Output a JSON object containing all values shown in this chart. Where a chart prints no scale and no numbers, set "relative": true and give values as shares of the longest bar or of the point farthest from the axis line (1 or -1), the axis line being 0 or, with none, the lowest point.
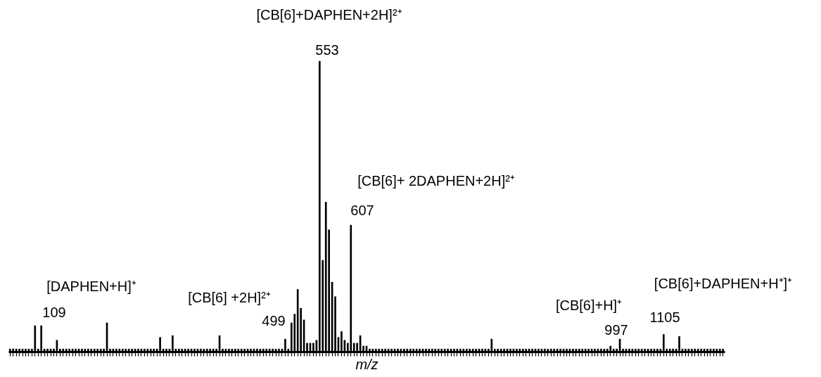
{
  "chart_data": {
    "type": "bar",
    "relative": true,
    "xlabel": "m/z",
    "color": "#000000",
    "categories": [
      null,
      null,
      null,
      null,
      null,
      null,
      null,
      null,
      null,
      null,
      null,
      null,
      null,
      null,
      null,
      null,
      null,
      null,
      null,
      null,
      null,
      null,
      null,
      null,
      null,
      null,
      null,
      null,
      null,
      null,
      null,
      null,
      null,
      null,
      null,
      null,
      null,
      null,
      null,
      null,
      null,
      null,
      null,
      null,
      null,
      null,
      null,
      null,
      null,
      null,
      null,
      null,
      null,
      null,
      null,
      null,
      null,
      null,
      null,
      null,
      null,
      null,
      null,
      null,
      null,
      null,
      null,
      null,
      null,
      null,
      null,
      null,
      null,
      null,
      null,
      null,
      null,
      null,
      null,
      null,
      null,
      null,
      null,
      null,
      null,
      null,
      null,
      null,
      null,
      null,
      null,
      null,
      null,
      null,
      null,
      null,
      null,
      null,
      null,
      null,
      null,
      null,
      null,
      null,
      null,
      null,
      null,
      null,
      null,
      null,
      null,
      null,
      null,
      null,
      null,
      null,
      null,
      null,
      null,
      null,
      null,
      null,
      null,
      null,
      null,
      null,
      null,
      null,
      null,
      null,
      null,
      null,
      null,
      null,
      null,
      null,
      null,
      null,
      null,
      null,
      null,
      null,
      null,
      null,
      null,
      null,
      null,
      null,
      null,
      null,
      null,
      null,
      null,
      null,
      null,
      null,
      null,
      null,
      null,
      null,
      null,
      null,
      null,
      null,
      null,
      null,
      null,
      null,
      null,
      null,
      null,
      null,
      null,
      null,
      null,
      null,
      null,
      null,
      null,
      null,
      null,
      null,
      null,
      null,
      null,
      null,
      null,
      null,
      null,
      null,
      null,
      null,
      null,
      null,
      null,
      null,
      null,
      null,
      null,
      null,
      null,
      null,
      null,
      null,
      null,
      null,
      null,
      null,
      null,
      null,
      null,
      null,
      null,
      null,
      null,
      null,
      null,
      null,
      null,
      null,
      null,
      null,
      null,
      null,
      null,
      null,
      null,
      null,
      null
    ],
    "values": [
      0.01,
      0.01,
      0.01,
      0.01,
      0.01,
      0.01,
      0.01,
      0.01,
      0.09,
      0.01,
      0.09,
      0.01,
      0.01,
      0.01,
      0.01,
      0.04,
      0.01,
      0.01,
      0.01,
      0.01,
      0.01,
      0.01,
      0.01,
      0.01,
      0.01,
      0.01,
      0.01,
      0.01,
      0.01,
      0.01,
      0.01,
      0.1,
      0.01,
      0.01,
      0.01,
      0.01,
      0.01,
      0.01,
      0.01,
      0.01,
      0.01,
      0.01,
      0.01,
      0.01,
      0.01,
      0.01,
      0.01,
      0.01,
      0.05,
      0.01,
      0.01,
      0.01,
      0.056,
      0.01,
      0.01,
      0.01,
      0.01,
      0.01,
      0.01,
      0.01,
      0.01,
      0.01,
      0.01,
      0.01,
      0.01,
      0.01,
      0.01,
      0.056,
      0.01,
      0.01,
      0.01,
      0.01,
      0.01,
      0.01,
      0.01,
      0.01,
      0.01,
      0.01,
      0.01,
      0.01,
      0.01,
      0.01,
      0.01,
      0.01,
      0.01,
      0.01,
      0.01,
      0.01,
      0.044,
      0.01,
      0.1,
      0.13,
      0.215,
      0.15,
      0.11,
      0.03,
      0.03,
      0.03,
      0.04,
      1.0,
      0.315,
      0.515,
      0.42,
      0.24,
      0.19,
      0.05,
      0.07,
      0.04,
      0.03,
      0.436,
      0.03,
      0.03,
      0.056,
      0.02,
      0.02,
      0.01,
      0.01,
      0.01,
      0.01,
      0.01,
      0.01,
      0.01,
      0.01,
      0.01,
      0.01,
      0.01,
      0.01,
      0.01,
      0.01,
      0.01,
      0.01,
      0.01,
      0.01,
      0.01,
      0.01,
      0.01,
      0.01,
      0.01,
      0.01,
      0.01,
      0.01,
      0.01,
      0.01,
      0.01,
      0.01,
      0.01,
      0.01,
      0.01,
      0.01,
      0.01,
      0.01,
      0.01,
      0.01,
      0.01,
      0.044,
      0.01,
      0.01,
      0.01,
      0.01,
      0.01,
      0.01,
      0.01,
      0.01,
      0.01,
      0.01,
      0.01,
      0.01,
      0.01,
      0.01,
      0.01,
      0.01,
      0.01,
      0.01,
      0.01,
      0.01,
      0.01,
      0.01,
      0.01,
      0.01,
      0.01,
      0.01,
      0.01,
      0.01,
      0.01,
      0.01,
      0.01,
      0.01,
      0.01,
      0.01,
      0.01,
      0.01,
      0.01,
      0.02,
      0.01,
      0.01,
      0.044,
      0.01,
      0.01,
      0.01,
      0.01,
      0.01,
      0.01,
      0.01,
      0.01,
      0.01,
      0.01,
      0.01,
      0.01,
      0.01,
      0.06,
      0.01,
      0.01,
      0.01,
      0.01,
      0.053,
      0.01,
      0.01,
      0.01,
      0.01,
      0.01,
      0.01,
      0.01,
      0.01,
      0.01,
      0.01,
      0.01,
      0.01,
      0.01,
      0.01
    ],
    "tick_labels": false,
    "grid": false,
    "annotations": [
      "[CB[6]+DAPHEN+2H]²⁺",
      "553",
      "[CB[6]+ 2DAPHEN+2H]²⁺",
      "607",
      "[DAPHEN+H]⁺",
      "109",
      "[CB[6] +2H]²⁺",
      "499",
      "[CB[6]+H]⁺",
      "997",
      "[CB[6]+DAPHEN+H⁺]⁺",
      "1105"
    ]
  }
}
